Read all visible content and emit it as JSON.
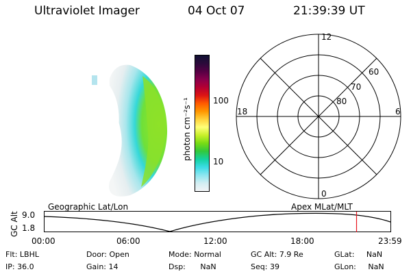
{
  "header": {
    "title": "Ultraviolet Imager",
    "date": "04 Oct 07",
    "time": "21:39:39 UT"
  },
  "colorbar": {
    "label": "photon cm⁻²s⁻¹",
    "ticks": [
      "100",
      "10"
    ],
    "colors": [
      "#111133",
      "#2b0a3a",
      "#550044",
      "#88004c",
      "#b40032",
      "#dc1414",
      "#ff5a00",
      "#ff9600",
      "#ffd23c",
      "#ffff78",
      "#c8f02a",
      "#78dc14",
      "#32c83c",
      "#14d2a0",
      "#3cdce6",
      "#8ce6f0",
      "#d2eef2",
      "#f2f4f6"
    ]
  },
  "polar": {
    "mlt_labels": [
      "12",
      "18",
      "6",
      "0"
    ],
    "lat_labels": [
      "60",
      "70",
      "80"
    ]
  },
  "timeline": {
    "left_label": "Geographic Lat/Lon",
    "right_label": "Apex  MLat/MLT",
    "y_axis_label": "GC Alt",
    "y_ticks": [
      "9.0",
      "1.8"
    ],
    "x_ticks": [
      "00:00",
      "06:00",
      "12:00",
      "18:00",
      "23:59"
    ],
    "current_time": "21:39",
    "marker_color": "#e8141e"
  },
  "footer": {
    "row1": [
      {
        "label": "Flt:",
        "value": "LBHL"
      },
      {
        "label": "Door:",
        "value": "Open"
      },
      {
        "label": "Mode:",
        "value": "Normal"
      },
      {
        "label": "GC Alt:",
        "value": "7.9 Re"
      },
      {
        "label": "GLat:",
        "value": "NaN"
      }
    ],
    "row2": [
      {
        "label": "IP:",
        "value": "36.0"
      },
      {
        "label": "Gain:",
        "value": "14"
      },
      {
        "label": "Dsp:",
        "value": "NaN"
      },
      {
        "label": "Seq:",
        "value": "39"
      },
      {
        "label": "GLon:",
        "value": "NaN"
      }
    ]
  }
}
